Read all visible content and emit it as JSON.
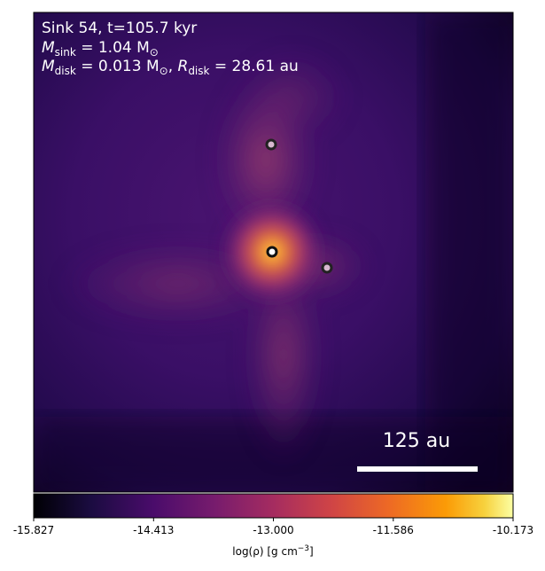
{
  "chart_data": {
    "type": "heatmap",
    "title_lines": {
      "line1": "Sink 54, t=105.7 kyr",
      "line2_prefix": "M",
      "line2_sub": "sink",
      "line2_value": " = 1.04 M",
      "line2_unit_sub": "⊙",
      "line3_prefix": "M",
      "line3_sub": "disk",
      "line3_value": " = 0.013 M",
      "line3_unit_sub": "⊙",
      "line3_sep": ", ",
      "line3_r": "R",
      "line3_r_sub": "disk",
      "line3_r_value": " = 28.61 au"
    },
    "scale_bar_label": "125 au",
    "colorbar": {
      "label_prefix": "log(ρ) [g cm",
      "label_exp": "−3",
      "label_suffix": "]",
      "ticks": [
        "-15.827",
        "-14.413",
        "-13.000",
        "-11.586",
        "-10.173"
      ],
      "range": [
        -15.827,
        -10.173
      ],
      "colormap": "inferno-like"
    },
    "sinks": [
      {
        "name": "primary-sink",
        "fill": "#ffffff",
        "role": "central"
      },
      {
        "name": "companion-sink-north",
        "fill": "#d8b8d0",
        "role": "companion"
      },
      {
        "name": "companion-sink-east",
        "fill": "#d8b8d0",
        "role": "companion"
      }
    ]
  },
  "colors": {
    "background": "#1a0838",
    "mid": "#5a1a6e",
    "core": "#ffb030",
    "bar": "#ffffff"
  }
}
